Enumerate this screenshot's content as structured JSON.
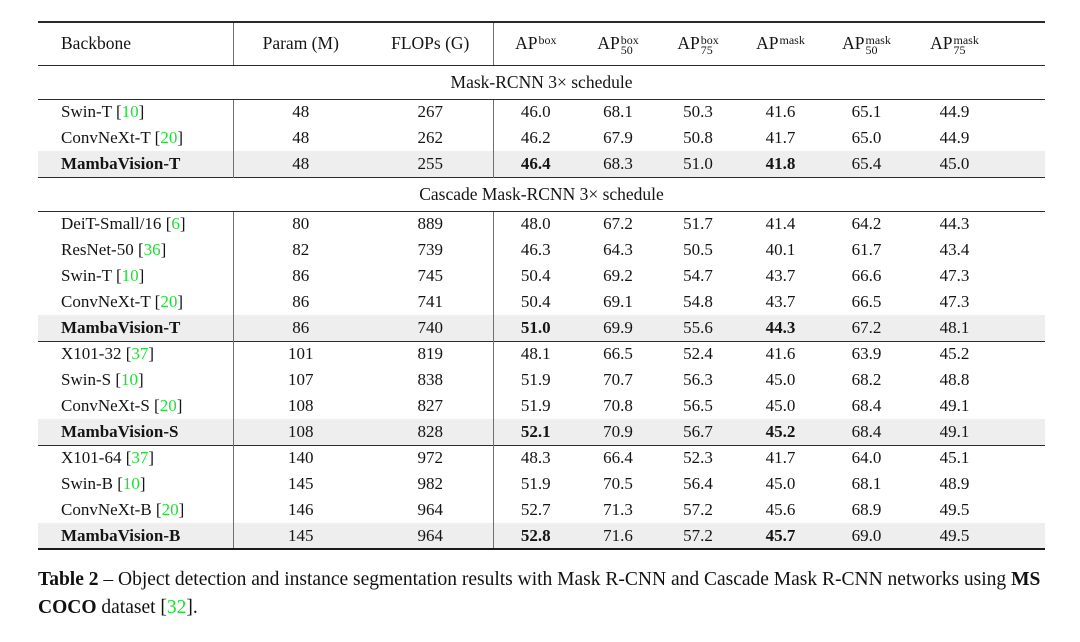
{
  "colors": {
    "citation_green": "#20dd35",
    "highlight_row_bg": "#eeeeee",
    "rule_color": "#2b2b2b",
    "text_color": "#141414"
  },
  "header": {
    "backbone": "Backbone",
    "param": "Param (M)",
    "flops": "FLOPs (G)",
    "ap_cols": [
      {
        "base": "AP",
        "sup": "box",
        "sub": ""
      },
      {
        "base": "AP",
        "sup": "box",
        "sub": "50"
      },
      {
        "base": "AP",
        "sup": "box",
        "sub": "75"
      },
      {
        "base": "AP",
        "sup": "mask",
        "sub": ""
      },
      {
        "base": "AP",
        "sup": "mask",
        "sub": "50"
      },
      {
        "base": "AP",
        "sup": "mask",
        "sub": "75"
      }
    ]
  },
  "value_col_names": [
    "param",
    "flops",
    "ap-box",
    "ap-box-50",
    "ap-box-75",
    "ap-mask",
    "ap-mask-50",
    "ap-mask-75"
  ],
  "sections": [
    {
      "title": "Mask-RCNN 3× schedule",
      "groups": [
        {
          "rows": [
            {
              "backbone": "Swin-T",
              "cite": "10",
              "highlight": false,
              "values": [
                "48",
                "267",
                "46.0",
                "68.1",
                "50.3",
                "41.6",
                "65.1",
                "44.9"
              ],
              "bold_values": []
            },
            {
              "backbone": "ConvNeXt-T",
              "cite": "20",
              "highlight": false,
              "values": [
                "48",
                "262",
                "46.2",
                "67.9",
                "50.8",
                "41.7",
                "65.0",
                "44.9"
              ],
              "bold_values": []
            },
            {
              "backbone": "MambaVision-T",
              "cite": "",
              "highlight": true,
              "values": [
                "48",
                "255",
                "46.4",
                "68.3",
                "51.0",
                "41.8",
                "65.4",
                "45.0"
              ],
              "bold_values": [
                2,
                5
              ]
            }
          ]
        }
      ]
    },
    {
      "title": "Cascade Mask-RCNN 3× schedule",
      "groups": [
        {
          "rows": [
            {
              "backbone": "DeiT-Small/16",
              "cite": "6",
              "highlight": false,
              "values": [
                "80",
                "889",
                "48.0",
                "67.2",
                "51.7",
                "41.4",
                "64.2",
                "44.3"
              ],
              "bold_values": []
            },
            {
              "backbone": "ResNet-50",
              "cite": "36",
              "highlight": false,
              "values": [
                "82",
                "739",
                "46.3",
                "64.3",
                "50.5",
                "40.1",
                "61.7",
                "43.4"
              ],
              "bold_values": []
            },
            {
              "backbone": "Swin-T",
              "cite": "10",
              "highlight": false,
              "values": [
                "86",
                "745",
                "50.4",
                "69.2",
                "54.7",
                "43.7",
                "66.6",
                "47.3"
              ],
              "bold_values": []
            },
            {
              "backbone": "ConvNeXt-T",
              "cite": "20",
              "highlight": false,
              "values": [
                "86",
                "741",
                "50.4",
                "69.1",
                "54.8",
                "43.7",
                "66.5",
                "47.3"
              ],
              "bold_values": []
            },
            {
              "backbone": "MambaVision-T",
              "cite": "",
              "highlight": true,
              "values": [
                "86",
                "740",
                "51.0",
                "69.9",
                "55.6",
                "44.3",
                "67.2",
                "48.1"
              ],
              "bold_values": [
                2,
                5
              ]
            }
          ]
        },
        {
          "rows": [
            {
              "backbone": "X101-32",
              "cite": "37",
              "highlight": false,
              "values": [
                "101",
                "819",
                "48.1",
                "66.5",
                "52.4",
                "41.6",
                "63.9",
                "45.2"
              ],
              "bold_values": []
            },
            {
              "backbone": "Swin-S",
              "cite": "10",
              "highlight": false,
              "values": [
                "107",
                "838",
                "51.9",
                "70.7",
                "56.3",
                "45.0",
                "68.2",
                "48.8"
              ],
              "bold_values": []
            },
            {
              "backbone": "ConvNeXt-S",
              "cite": "20",
              "highlight": false,
              "values": [
                "108",
                "827",
                "51.9",
                "70.8",
                "56.5",
                "45.0",
                "68.4",
                "49.1"
              ],
              "bold_values": []
            },
            {
              "backbone": "MambaVision-S",
              "cite": "",
              "highlight": true,
              "values": [
                "108",
                "828",
                "52.1",
                "70.9",
                "56.7",
                "45.2",
                "68.4",
                "49.1"
              ],
              "bold_values": [
                2,
                5
              ]
            }
          ]
        },
        {
          "rows": [
            {
              "backbone": "X101-64",
              "cite": "37",
              "highlight": false,
              "values": [
                "140",
                "972",
                "48.3",
                "66.4",
                "52.3",
                "41.7",
                "64.0",
                "45.1"
              ],
              "bold_values": []
            },
            {
              "backbone": "Swin-B",
              "cite": "10",
              "highlight": false,
              "values": [
                "145",
                "982",
                "51.9",
                "70.5",
                "56.4",
                "45.0",
                "68.1",
                "48.9"
              ],
              "bold_values": []
            },
            {
              "backbone": "ConvNeXt-B",
              "cite": "20",
              "highlight": false,
              "values": [
                "146",
                "964",
                "52.7",
                "71.3",
                "57.2",
                "45.6",
                "68.9",
                "49.5"
              ],
              "bold_values": []
            },
            {
              "backbone": "MambaVision-B",
              "cite": "",
              "highlight": true,
              "values": [
                "145",
                "964",
                "52.8",
                "71.6",
                "57.2",
                "45.7",
                "69.0",
                "49.5"
              ],
              "bold_values": [
                2,
                5
              ]
            }
          ]
        }
      ]
    }
  ],
  "caption": {
    "segments": [
      {
        "text": "Table 2",
        "style": "bold"
      },
      {
        "text": " – Object detection and instance segmentation results with Mask R-CNN and Cascade Mask R-CNN networks using ",
        "style": "normal"
      },
      {
        "text": "MS COCO",
        "style": "bold"
      },
      {
        "text": " dataset [",
        "style": "normal"
      },
      {
        "text": "32",
        "style": "citation"
      },
      {
        "text": "].",
        "style": "normal"
      }
    ]
  }
}
